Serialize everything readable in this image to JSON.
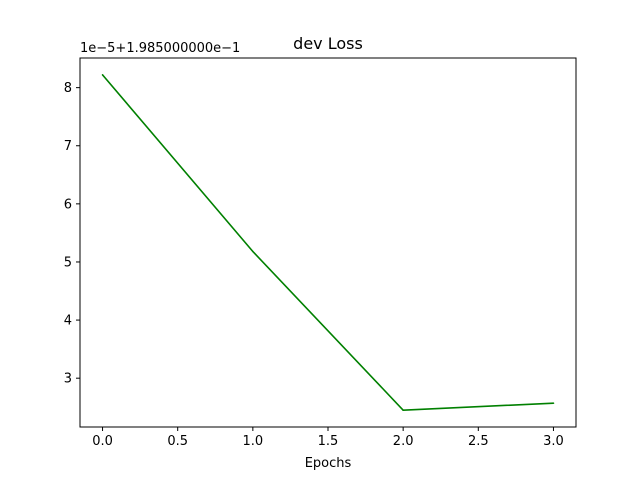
{
  "chart_data": {
    "type": "line",
    "title": "dev Loss",
    "xlabel": "Epochs",
    "ylabel": "",
    "y_offset_text": "1e−5+1.985000000e−1",
    "x": [
      0,
      1,
      2,
      3
    ],
    "series": [
      {
        "values": [
          8.22,
          5.18,
          2.45,
          2.57
        ],
        "color": "#008000"
      }
    ],
    "xlim": [
      -0.15,
      3.15
    ],
    "ylim": [
      2.16,
      8.51
    ],
    "xticks": [
      0.0,
      0.5,
      1.0,
      1.5,
      2.0,
      2.5,
      3.0
    ],
    "xtick_labels": [
      "0.0",
      "0.5",
      "1.0",
      "1.5",
      "2.0",
      "2.5",
      "3.0"
    ],
    "yticks": [
      3,
      4,
      5,
      6,
      7,
      8
    ],
    "ytick_labels": [
      "3",
      "4",
      "5",
      "6",
      "7",
      "8"
    ],
    "grid": false,
    "legend": "none"
  }
}
